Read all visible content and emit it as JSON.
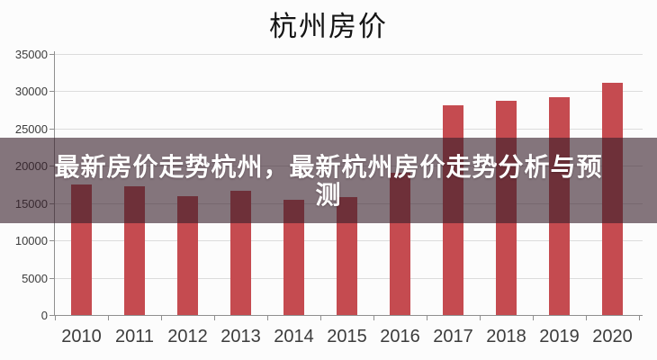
{
  "headline_overlay": {
    "full_text": "最新房价走势杭州，最新杭州房价走势分析与预测",
    "line1": "最新房价走势杭州，最新杭州房价走势分析与预",
    "line2": "测",
    "background_color": "rgba(56,31,42,0.61)",
    "text_color": "#ffffff"
  },
  "chart_data": {
    "type": "bar",
    "title": "杭州房价",
    "categories": [
      "2010",
      "2011",
      "2012",
      "2013",
      "2014",
      "2015",
      "2016",
      "2017",
      "2018",
      "2019",
      "2020"
    ],
    "values": [
      17500,
      17250,
      15900,
      16650,
      15450,
      15800,
      19050,
      28100,
      28700,
      29200,
      31100
    ],
    "xlabel": "",
    "ylabel": "",
    "ylim": [
      0,
      35000
    ],
    "yticks": [
      0,
      5000,
      10000,
      15000,
      20000,
      25000,
      30000,
      35000
    ],
    "grid": true,
    "legend": "none",
    "colors": {
      "bar": "#c54b50",
      "gridline": "#dcdcdc",
      "axis": "#8f8f8f",
      "tick_label": "#3c3c3c",
      "title": "#141414",
      "background": "#fcfcfc"
    }
  }
}
